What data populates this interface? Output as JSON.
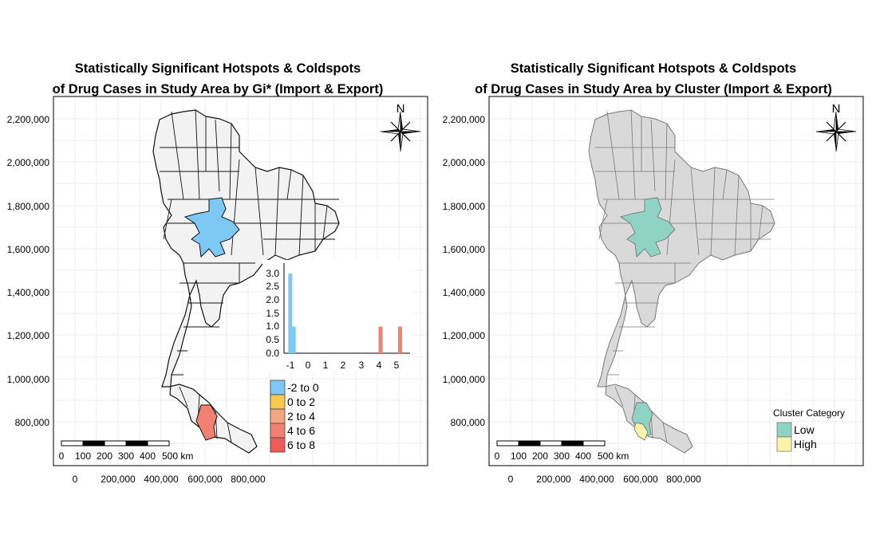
{
  "maps": [
    {
      "title_line1": "Statistically Significant Hotspots & Coldspots",
      "title_line2": "of Drug Cases in Study Area by Gi* (Import & Export)",
      "y_ticks": [
        "2,200,000",
        "2,000,000",
        "1,800,000",
        "1,600,000",
        "1,400,000",
        "1,200,000",
        "1,000,000",
        "800,000"
      ],
      "x_ticks": [
        "0",
        "200,000",
        "400,000",
        "600,000",
        "800,000"
      ],
      "north_label": "N",
      "scalebar_labels": [
        "0",
        "100",
        "200",
        "300",
        "400",
        "500 km"
      ],
      "legend": {
        "items": [
          {
            "label": "-2 to 0",
            "color": "#7ec8f6"
          },
          {
            "label": "0 to 2",
            "color": "#f8c94c"
          },
          {
            "label": "2 to 4",
            "color": "#f4a582"
          },
          {
            "label": "4 to 6",
            "color": "#f28070"
          },
          {
            "label": "6 to 8",
            "color": "#f05a5a"
          }
        ]
      },
      "colors": {
        "base": "#f2f2f2",
        "stroke": "#111111",
        "cold": "#7ec8f6",
        "hot": "#f28070"
      },
      "histogram": {
        "x_ticks": [
          "-1",
          "0",
          "1",
          "2",
          "3",
          "4",
          "5"
        ],
        "y_ticks": [
          "0.0",
          "0.5",
          "1.0",
          "1.5",
          "2.0",
          "2.5",
          "3.0"
        ],
        "bars": [
          {
            "x": -1.0,
            "count": 3.0,
            "color": "#7ec8f6"
          },
          {
            "x": -0.8,
            "count": 1.0,
            "color": "#7ec8f6"
          },
          {
            "x": 4.1,
            "count": 1.0,
            "color": "#f28070"
          },
          {
            "x": 5.2,
            "count": 1.0,
            "color": "#f28070"
          }
        ]
      }
    },
    {
      "title_line1": "Statistically Significant Hotspots & Coldspots",
      "title_line2": "of Drug Cases in Study Area by Cluster (Import & Export)",
      "y_ticks": [
        "2,200,000",
        "2,000,000",
        "1,800,000",
        "1,600,000",
        "1,400,000",
        "1,200,000",
        "1,000,000",
        "800,000"
      ],
      "x_ticks": [
        "0",
        "200,000",
        "400,000",
        "600,000",
        "800,000"
      ],
      "north_label": "N",
      "scalebar_labels": [
        "0",
        "100",
        "200",
        "300",
        "400",
        "500 km"
      ],
      "legend": {
        "title": "Cluster Category",
        "items": [
          {
            "label": "Low",
            "color": "#8fd3c5"
          },
          {
            "label": "High",
            "color": "#fbf4a8"
          }
        ]
      },
      "colors": {
        "base": "#d9d9d9",
        "stroke": "#777777",
        "low": "#8fd3c5",
        "high": "#fbf4a8"
      }
    }
  ]
}
